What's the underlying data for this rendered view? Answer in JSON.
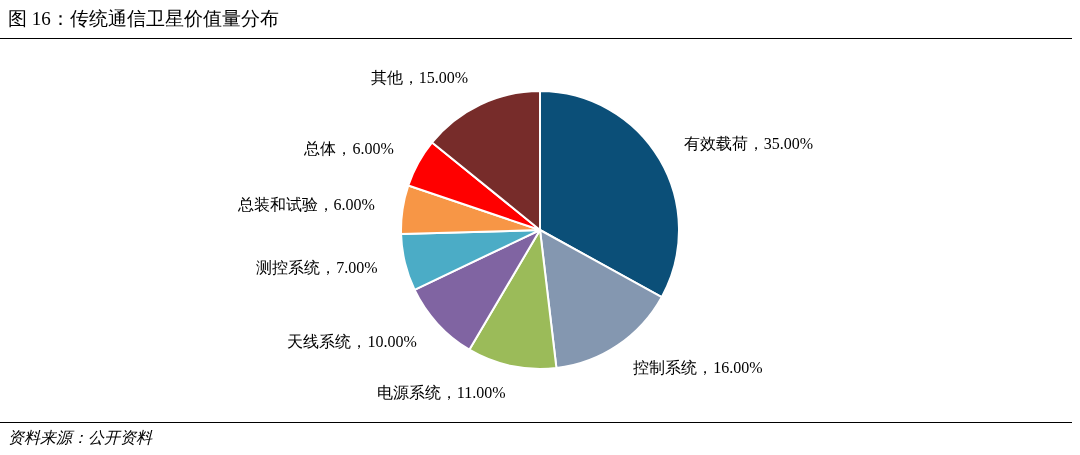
{
  "chart_data": {
    "type": "pie",
    "title": "图 16：传统通信卫星价值量分布",
    "categories": [
      "有效载荷",
      "控制系统",
      "电源系统",
      "天线系统",
      "测控系统",
      "总装和试验",
      "总体",
      "其他"
    ],
    "values": [
      35,
      16,
      11,
      10,
      7,
      6,
      6,
      15
    ],
    "value_labels": [
      "35.00%",
      "16.00%",
      "11.00%",
      "10.00%",
      "7.00%",
      "6.00%",
      "6.00%",
      "15.00%"
    ],
    "colors": [
      "#0b4f78",
      "#8497b0",
      "#9bbb59",
      "#8064a2",
      "#4bacc6",
      "#f79646",
      "#ff0000",
      "#772c2a"
    ],
    "annotations": [
      "资料来源：公开资料"
    ]
  }
}
